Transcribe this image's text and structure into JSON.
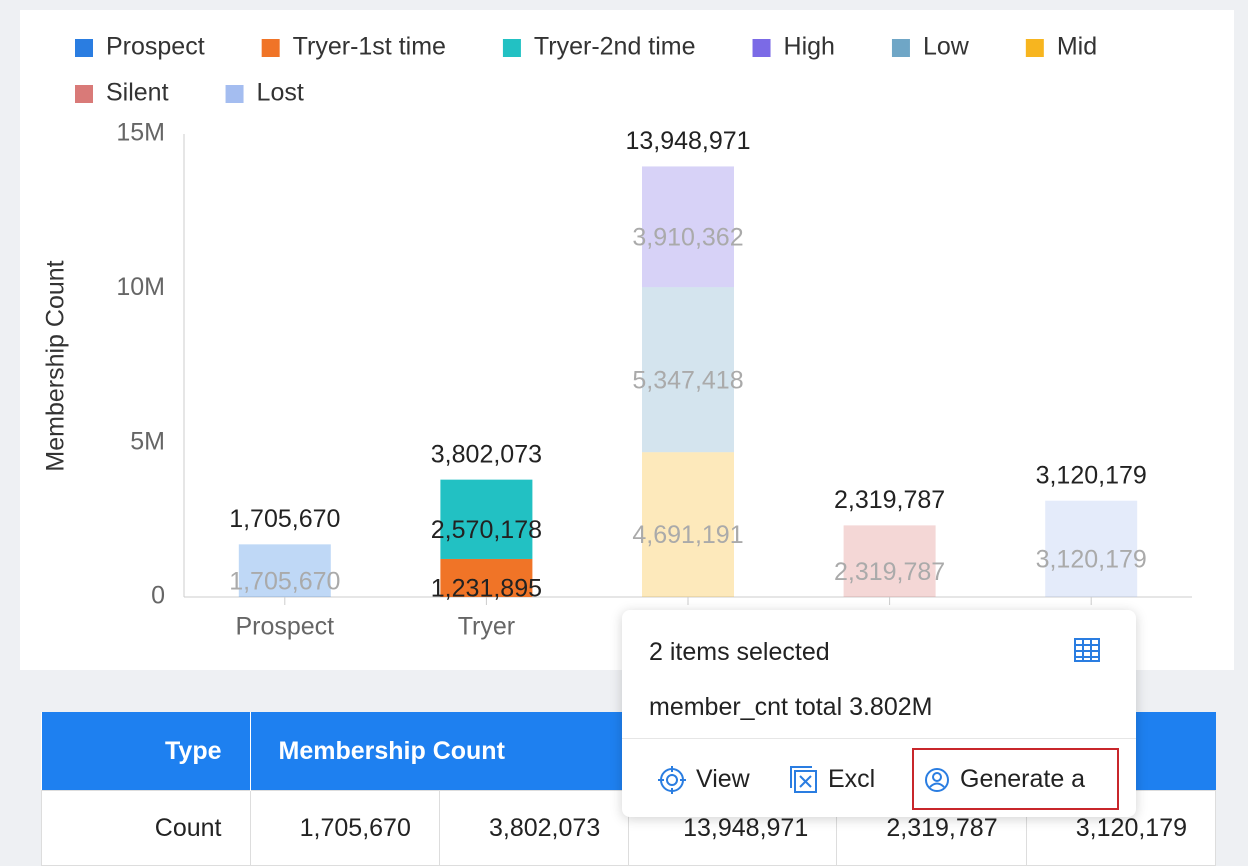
{
  "chart_data": {
    "type": "stacked-bar",
    "y_label": "Membership Count",
    "categories": [
      "Prospect",
      "Tryer",
      null,
      null,
      null
    ],
    "series": [
      {
        "name": "Prospect",
        "color": "#2a7de1",
        "values": [
          1705670,
          null,
          null,
          null,
          null
        ],
        "value_labels": [
          "1,705,670",
          null,
          null,
          null,
          null
        ]
      },
      {
        "name": "Tryer-1st time",
        "color": "#f07427",
        "values": [
          null,
          1231895,
          null,
          null,
          null
        ],
        "value_labels": [
          null,
          "1,231,895",
          null,
          null,
          null
        ]
      },
      {
        "name": "Tryer-2nd time",
        "color": "#22c1c3",
        "values": [
          null,
          2570178,
          null,
          null,
          null
        ],
        "value_labels": [
          null,
          "2,570,178",
          null,
          null,
          null
        ]
      },
      {
        "name": "Mid",
        "color": "#f7b51f",
        "values": [
          null,
          null,
          4691191,
          null,
          null
        ],
        "value_labels": [
          null,
          null,
          "4,691,191",
          null,
          null
        ]
      },
      {
        "name": "Low",
        "color": "#6fa6c6",
        "values": [
          null,
          null,
          5347418,
          null,
          null
        ],
        "value_labels": [
          null,
          null,
          "5,347,418",
          null,
          null
        ]
      },
      {
        "name": "High",
        "color": "#7b6ae6",
        "values": [
          null,
          null,
          3910362,
          null,
          null
        ],
        "value_labels": [
          null,
          null,
          "3,910,362",
          null,
          null
        ]
      },
      {
        "name": "Silent",
        "color": "#d97a78",
        "values": [
          null,
          null,
          null,
          2319787,
          null
        ],
        "value_labels": [
          null,
          null,
          null,
          "2,319,787",
          null
        ]
      },
      {
        "name": "Lost",
        "color": "#a4bdf0",
        "values": [
          null,
          null,
          null,
          null,
          3120179
        ],
        "value_labels": [
          null,
          null,
          null,
          null,
          "3,120,179"
        ]
      }
    ],
    "legend_order": [
      0,
      1,
      2,
      5,
      4,
      3,
      6,
      7
    ],
    "totals": [
      1705670,
      3802073,
      13948971,
      2319787,
      3120179
    ],
    "total_labels": [
      "1,705,670",
      "3,802,073",
      "13,948,971",
      "2,319,787",
      "3,120,179"
    ],
    "highlighted_category": 1,
    "ylim": [
      0,
      15000000
    ],
    "yticks": [
      0,
      {
        "value": 5000000,
        "label": "5M"
      },
      {
        "value": 10000000,
        "label": "10M"
      },
      {
        "value": 15000000,
        "label": "15M"
      }
    ]
  },
  "table": {
    "header": [
      "Type",
      "Membership Count"
    ],
    "rows": [
      [
        "Count",
        "1,705,670",
        "3,802,073",
        "13,948,971",
        "2,319,787",
        "3,120,179"
      ]
    ]
  },
  "popup": {
    "title": "2 items selected",
    "summary": "member_cnt total 3.802M",
    "actions": [
      "View",
      "Excl",
      "Generate a"
    ]
  }
}
